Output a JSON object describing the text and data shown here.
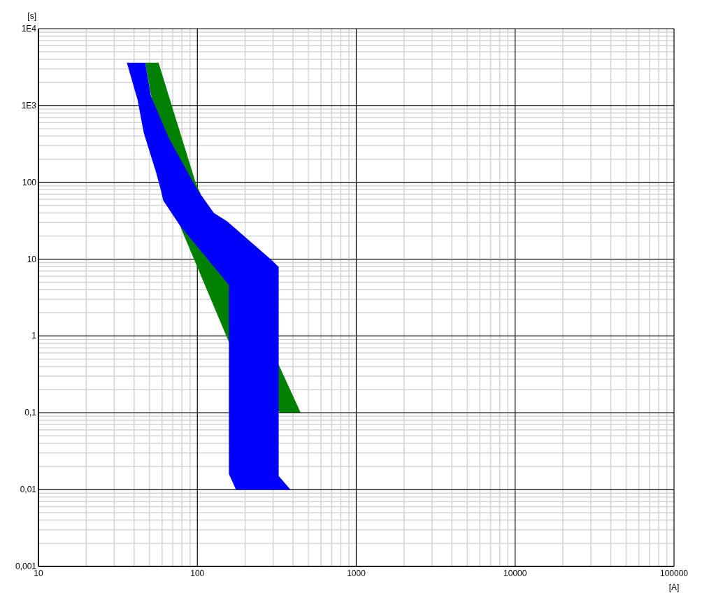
{
  "chart_data": {
    "type": "area",
    "xlabel": "[A]",
    "ylabel": "[s]",
    "log": "xy",
    "grid": true,
    "xlim": [
      10,
      100000
    ],
    "xticks": [
      10,
      100,
      1000,
      10000,
      100000
    ],
    "ylim": [
      0.001,
      10000
    ],
    "yticks": [
      {
        "value": 0.001,
        "label": "0,001"
      },
      {
        "value": 0.01,
        "label": "0,01"
      },
      {
        "value": 0.1,
        "label": "0,1"
      },
      1,
      10,
      100,
      {
        "value": 1000,
        "label": "1E3"
      },
      {
        "value": 10000,
        "label": "1E4"
      }
    ],
    "series": [
      {
        "color": "#008000",
        "x": [
          47,
          57,
          98,
          447,
          330,
          158,
          79,
          51
        ],
        "values": [
          3600,
          3600,
          96,
          0.1,
          0.1,
          0.83,
          25,
          1400
        ]
      },
      {
        "color": "#0000ff",
        "x": [
          36,
          47,
          51,
          66,
          100,
          127,
          154,
          292,
          325,
          325,
          386,
          175,
          158,
          158,
          78,
          61,
          59,
          55,
          46,
          42
        ],
        "values": [
          3600,
          3600,
          1340,
          380,
          80,
          40,
          31,
          9.8,
          7.9,
          0.015,
          0.01,
          0.01,
          0.016,
          4.6,
          27,
          58,
          78,
          134,
          440,
          1200
        ]
      }
    ]
  }
}
